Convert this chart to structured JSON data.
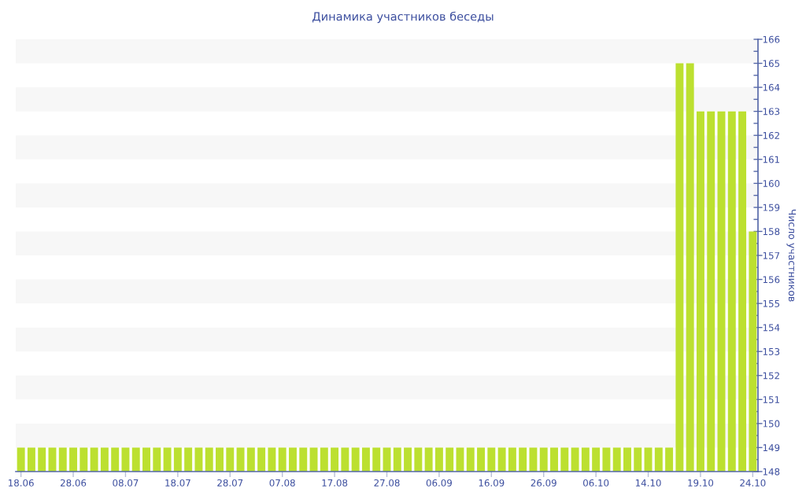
{
  "chart_data": {
    "type": "bar",
    "title": "Динамика участников беседы",
    "ylabel": "Число участников",
    "categories": [
      "18.06",
      null,
      null,
      null,
      null,
      "28.06",
      null,
      null,
      null,
      null,
      "08.07",
      null,
      null,
      null,
      null,
      "18.07",
      null,
      null,
      null,
      null,
      "28.07",
      null,
      null,
      null,
      null,
      "07.08",
      null,
      null,
      null,
      null,
      "17.08",
      null,
      null,
      null,
      null,
      "27.08",
      null,
      null,
      null,
      null,
      "06.09",
      null,
      null,
      null,
      null,
      "16.09",
      null,
      null,
      null,
      null,
      "26.09",
      null,
      null,
      null,
      null,
      "06.10",
      null,
      null,
      null,
      null,
      "14.10",
      null,
      null,
      null,
      null,
      "19.10",
      null,
      null,
      null,
      null,
      "24.10"
    ],
    "values": [
      149,
      149,
      149,
      149,
      149,
      149,
      149,
      149,
      149,
      149,
      149,
      149,
      149,
      149,
      149,
      149,
      149,
      149,
      149,
      149,
      149,
      149,
      149,
      149,
      149,
      149,
      149,
      149,
      149,
      149,
      149,
      149,
      149,
      149,
      149,
      149,
      149,
      149,
      149,
      149,
      149,
      149,
      149,
      149,
      149,
      149,
      149,
      149,
      149,
      149,
      149,
      149,
      149,
      149,
      149,
      149,
      149,
      149,
      149,
      149,
      149,
      149,
      149,
      165,
      165,
      163,
      163,
      163,
      163,
      163,
      158
    ],
    "color": "#bce030",
    "ylim": [
      148,
      166
    ],
    "yticks": [
      148,
      149,
      150,
      151,
      152,
      153,
      154,
      155,
      156,
      157,
      158,
      159,
      160,
      161,
      162,
      163,
      164,
      165,
      166
    ],
    "bands": [
      {
        "axis": "y",
        "from": 149,
        "to": 150,
        "color": "#f7f7f7"
      },
      {
        "axis": "y",
        "from": 151,
        "to": 152,
        "color": "#f7f7f7"
      },
      {
        "axis": "y",
        "from": 153,
        "to": 154,
        "color": "#f7f7f7"
      },
      {
        "axis": "y",
        "from": 155,
        "to": 156,
        "color": "#f7f7f7"
      },
      {
        "axis": "y",
        "from": 157,
        "to": 158,
        "color": "#f7f7f7"
      },
      {
        "axis": "y",
        "from": 159,
        "to": 160,
        "color": "#f7f7f7"
      },
      {
        "axis": "y",
        "from": 161,
        "to": 162,
        "color": "#f7f7f7"
      },
      {
        "axis": "y",
        "from": 163,
        "to": 164,
        "color": "#f7f7f7"
      },
      {
        "axis": "y",
        "from": 165,
        "to": 166,
        "color": "#f7f7f7"
      }
    ]
  }
}
